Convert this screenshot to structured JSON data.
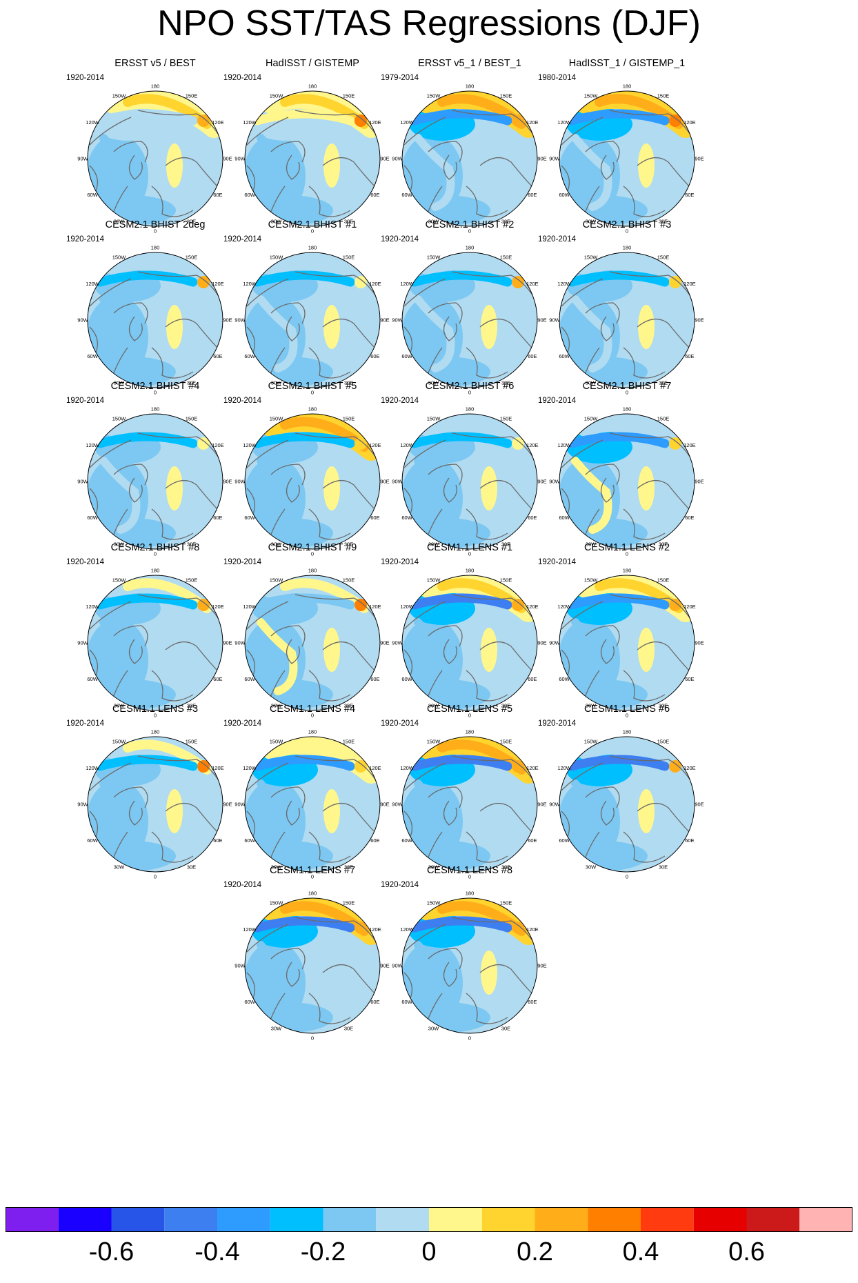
{
  "title": "NPO SST/TAS Regressions (DJF)",
  "longitude_labels": [
    "180",
    "150E",
    "120E",
    "90E",
    "60E",
    "30E",
    "0",
    "30W",
    "60W",
    "90W",
    "120W",
    "150W"
  ],
  "panels": [
    {
      "title": "ERSST v5 / BEST",
      "period": "1920-2014",
      "pattern": [
        0.28,
        0.1,
        -0.08,
        0.14,
        0.35
      ]
    },
    {
      "title": "HadISST / GISTEMP",
      "period": "1920-2014",
      "pattern": [
        0.28,
        0.14,
        -0.05,
        0.16,
        0.45
      ]
    },
    {
      "title": "ERSST v5_1 / BEST_1",
      "period": "1979-2014",
      "pattern": [
        0.3,
        -0.22,
        0.08,
        0.1,
        0.3
      ]
    },
    {
      "title": "HadISST_1 / GISTEMP_1",
      "period": "1980-2014",
      "pattern": [
        0.32,
        -0.22,
        0.05,
        0.12,
        0.45
      ]
    },
    {
      "title": "CESM2.1 BHIST 2deg",
      "period": "1920-2014",
      "pattern": [
        0.1,
        -0.12,
        -0.05,
        0.12,
        0.3
      ]
    },
    {
      "title": "CESM2.1 BHIST #1",
      "period": "1920-2014",
      "pattern": [
        0.06,
        -0.12,
        0.08,
        0.18,
        0.2
      ]
    },
    {
      "title": "CESM2.1 BHIST #2",
      "period": "1920-2014",
      "pattern": [
        0.05,
        -0.1,
        0.05,
        0.16,
        0.3
      ]
    },
    {
      "title": "CESM2.1 BHIST #3",
      "period": "1920-2014",
      "pattern": [
        0.1,
        -0.12,
        0.08,
        0.14,
        0.25
      ]
    },
    {
      "title": "CESM2.1 BHIST #4",
      "period": "1920-2014",
      "pattern": [
        0.08,
        -0.1,
        0.05,
        0.16,
        0.12
      ]
    },
    {
      "title": "CESM2.1 BHIST #5",
      "period": "1920-2014",
      "pattern": [
        0.32,
        -0.14,
        -0.08,
        0.12,
        0.28
      ]
    },
    {
      "title": "CESM2.1 BHIST #6",
      "period": "1920-2014",
      "pattern": [
        0.05,
        -0.1,
        -0.08,
        0.14,
        0.2
      ]
    },
    {
      "title": "CESM2.1 BHIST #7",
      "period": "1920-2014",
      "pattern": [
        0.05,
        -0.22,
        0.16,
        0.12,
        0.25
      ]
    },
    {
      "title": "CESM2.1 BHIST #8",
      "period": "1920-2014",
      "pattern": [
        0.12,
        -0.1,
        -0.08,
        0.1,
        0.3
      ]
    },
    {
      "title": "CESM2.1 BHIST #9",
      "period": "1920-2014",
      "pattern": [
        0.14,
        -0.08,
        0.14,
        0.18,
        0.4
      ]
    },
    {
      "title": "CESM1.1 LENS #1",
      "period": "1920-2014",
      "pattern": [
        0.28,
        -0.32,
        -0.05,
        0.14,
        0.35
      ]
    },
    {
      "title": "CESM1.1 LENS #2",
      "period": "1920-2014",
      "pattern": [
        0.22,
        -0.25,
        -0.06,
        0.12,
        0.3
      ]
    },
    {
      "title": "CESM1.1 LENS #3",
      "period": "1920-2014",
      "pattern": [
        0.14,
        -0.12,
        -0.05,
        0.14,
        0.4
      ]
    },
    {
      "title": "CESM1.1 LENS #4",
      "period": "1920-2014",
      "pattern": [
        0.2,
        -0.2,
        -0.08,
        0.12,
        0.28
      ]
    },
    {
      "title": "CESM1.1 LENS #5",
      "period": "1920-2014",
      "pattern": [
        0.32,
        -0.32,
        -0.08,
        0.1,
        0.3
      ]
    },
    {
      "title": "CESM1.1 LENS #6",
      "period": "1920-2014",
      "pattern": [
        0.08,
        -0.32,
        -0.05,
        0.12,
        0.3
      ]
    },
    {
      "title": "CESM1.1 LENS #7",
      "period": "1920-2014",
      "pattern": [
        0.32,
        -0.32,
        -0.08,
        0.1,
        0.3
      ]
    },
    {
      "title": "CESM1.1 LENS #8",
      "period": "1920-2014",
      "pattern": [
        0.3,
        -0.3,
        -0.08,
        0.12,
        0.3
      ]
    }
  ],
  "colorbar": {
    "colors": [
      "#7f1fef",
      "#1a00ff",
      "#2655e8",
      "#3d7ff0",
      "#2e9bff",
      "#00bfff",
      "#7cc8f2",
      "#b0dbf1",
      "#fff78c",
      "#ffd42e",
      "#ffae1a",
      "#ff7f00",
      "#ff3b0f",
      "#e60000",
      "#cc1a1a",
      "#ffb3b3"
    ],
    "labels": [
      "-0.6",
      "-0.4",
      "-0.2",
      "0",
      "0.2",
      "0.4",
      "0.6"
    ]
  }
}
